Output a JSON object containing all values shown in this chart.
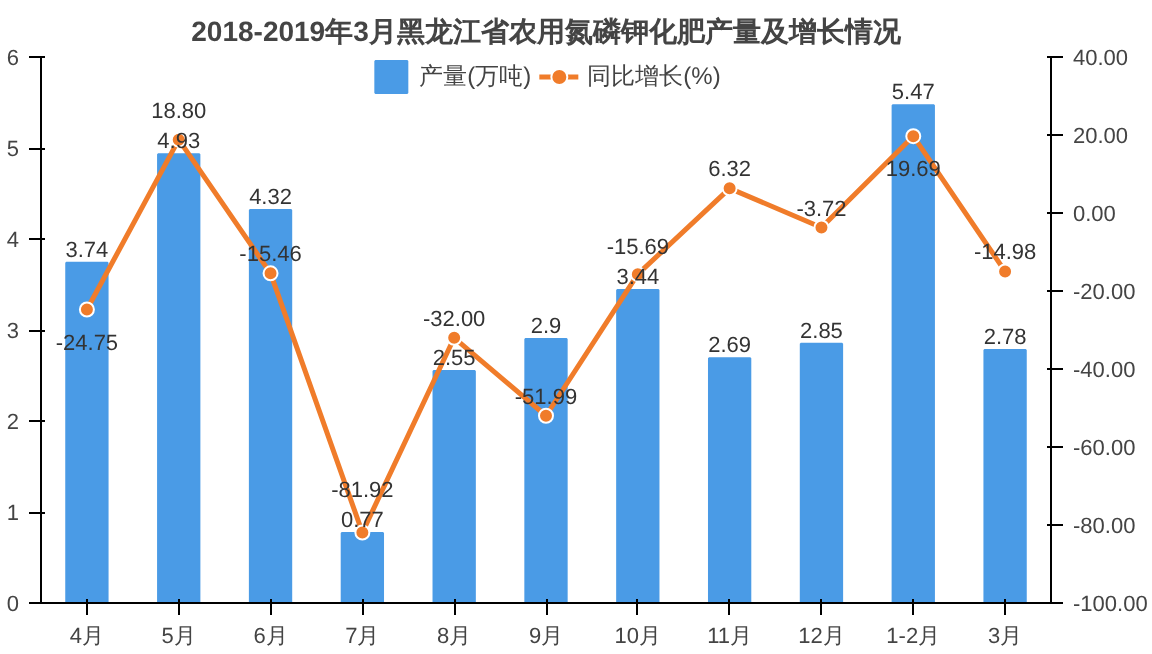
{
  "chart_data": {
    "type": "bar",
    "title": "2018-2019年3月黑龙江省农用氮磷钾化肥产量及增长情况",
    "categories": [
      "4月",
      "5月",
      "6月",
      "7月",
      "8月",
      "9月",
      "10月",
      "11月",
      "12月",
      "1-2月",
      "3月"
    ],
    "series": [
      {
        "name": "产量(万吨)",
        "color": "#4a9be6",
        "values": [
          3.74,
          4.93,
          4.32,
          0.77,
          2.55,
          2.9,
          3.44,
          2.69,
          2.85,
          5.47,
          2.78
        ],
        "value_labels": [
          "3.74",
          "4.93",
          "4.32",
          "0.77",
          "2.55",
          "2.9",
          "3.44",
          "2.69",
          "2.85",
          "5.47",
          "2.78"
        ]
      },
      {
        "name": "同比增长(%)",
        "type": "line",
        "axis": "y2",
        "color": "#f07c2a",
        "marker": "circle",
        "values": [
          -24.75,
          18.8,
          -15.46,
          -81.92,
          -32.0,
          -51.99,
          -15.69,
          6.32,
          -3.72,
          19.69,
          -14.98
        ],
        "value_labels": [
          "-24.75",
          "18.80",
          "-15.46",
          "-81.92",
          "-32.00",
          "-51.99",
          "-15.69",
          "6.32",
          "-3.72",
          "19.69",
          "-14.98"
        ]
      }
    ],
    "ylim": [
      0,
      6
    ],
    "yticks": [
      0,
      1,
      2,
      3,
      4,
      5,
      6
    ],
    "y2lim": [
      -100,
      40
    ],
    "y2ticks": [
      {
        "value": -100,
        "label": "-100.00"
      },
      {
        "value": -80,
        "label": "-80.00"
      },
      {
        "value": -60,
        "label": "-60.00"
      },
      {
        "value": -40,
        "label": "-40.00"
      },
      {
        "value": -20,
        "label": "-20.00"
      },
      {
        "value": 0,
        "label": "0.00"
      },
      {
        "value": 20,
        "label": "20.00"
      },
      {
        "value": 40,
        "label": "40.00"
      }
    ],
    "grid": false,
    "legend": "top"
  }
}
